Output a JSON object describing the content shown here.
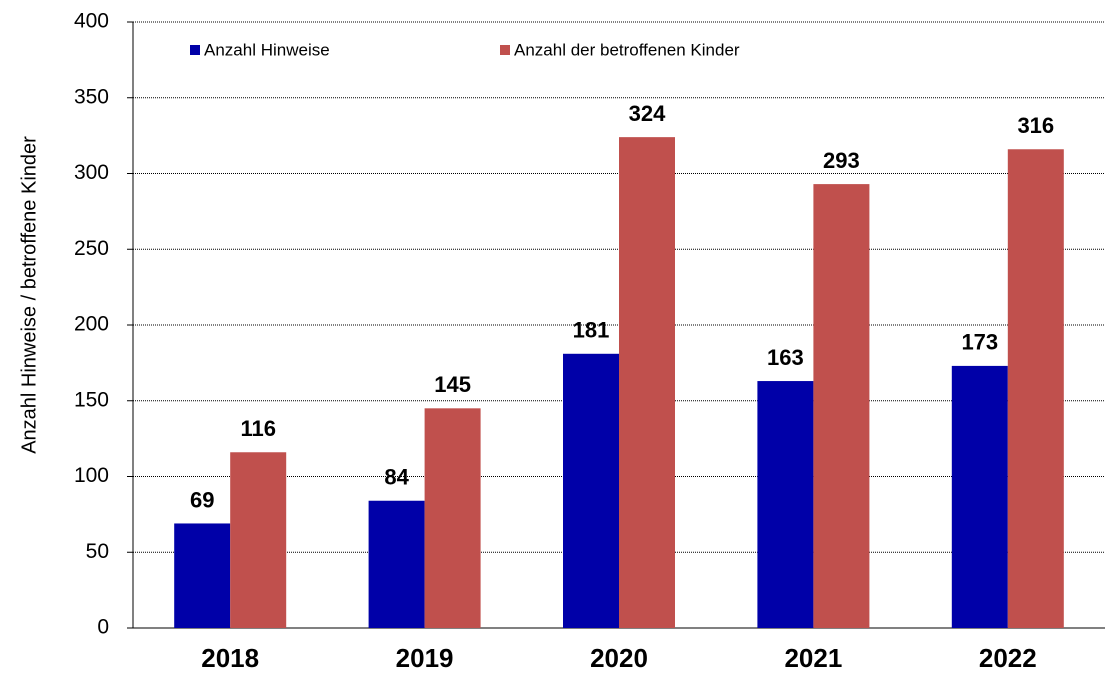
{
  "chart_data": {
    "type": "bar",
    "y_axis_label": "Anzahl Hinweise / betroffene Kinder",
    "categories": [
      "2018",
      "2019",
      "2020",
      "2021",
      "2022"
    ],
    "series": [
      {
        "name": "Anzahl Hinweise",
        "color": "#0000a8",
        "values": [
          69,
          84,
          181,
          163,
          173
        ]
      },
      {
        "name": "Anzahl der betroffenen Kinder",
        "color": "#c0504d",
        "values": [
          116,
          145,
          324,
          293,
          316
        ]
      }
    ],
    "ylim": [
      0,
      400
    ],
    "yticks": [
      0,
      50,
      100,
      150,
      200,
      250,
      300,
      350,
      400
    ],
    "grid": true,
    "legend": "top-left"
  }
}
